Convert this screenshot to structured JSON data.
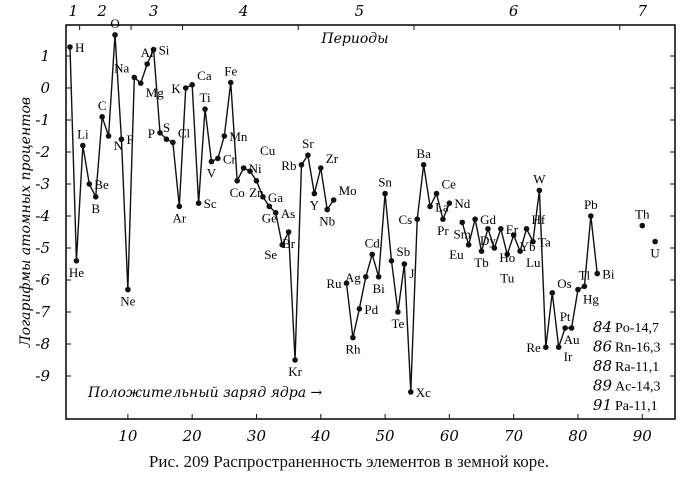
{
  "chart_data": {
    "type": "line",
    "title": "Рис. 209  Распространенность элементов в земной коре.",
    "xlabel": "Положительный заряд ядра →",
    "ylabel": "Логарифмы атомных процентов",
    "periods_label": "Периоды",
    "periods": [
      {
        "label": "1",
        "at": 1.5
      },
      {
        "label": "2",
        "at": 6
      },
      {
        "label": "3",
        "at": 14
      },
      {
        "label": "4",
        "at": 28
      },
      {
        "label": "5",
        "at": 46
      },
      {
        "label": "6",
        "at": 70
      },
      {
        "label": "7",
        "at": 90
      }
    ],
    "xlim": [
      0,
      93
    ],
    "ylim": [
      -10,
      2
    ],
    "xticks": [
      10,
      20,
      30,
      40,
      50,
      60,
      70,
      80,
      90
    ],
    "yticks": [
      1,
      0,
      -1,
      -2,
      -3,
      -4,
      -5,
      -6,
      -7,
      -8,
      -9
    ],
    "series": [
      {
        "name": "segment-1",
        "points": [
          {
            "z": 1,
            "el": "H",
            "v": 1.28
          },
          {
            "z": 2,
            "el": "He",
            "v": -5.4
          },
          {
            "z": 3,
            "el": "Li",
            "v": -1.8
          },
          {
            "z": 4,
            "el": "Be",
            "v": -3.0
          },
          {
            "z": 5,
            "el": "B",
            "v": -3.4
          },
          {
            "z": 6,
            "el": "C",
            "v": -0.9
          },
          {
            "z": 7,
            "el": "N",
            "v": -1.5
          },
          {
            "z": 8,
            "el": "O",
            "v": 1.66
          },
          {
            "z": 9,
            "el": "F",
            "v": -1.6
          },
          {
            "z": 10,
            "el": "Ne",
            "v": -6.3
          },
          {
            "z": 11,
            "el": "Na",
            "v": 0.33
          },
          {
            "z": 12,
            "el": "Mg",
            "v": 0.15
          },
          {
            "z": 13,
            "el": "Al",
            "v": 0.75
          },
          {
            "z": 14,
            "el": "Si",
            "v": 1.2
          },
          {
            "z": 15,
            "el": "P",
            "v": -1.4
          },
          {
            "z": 16,
            "el": "S",
            "v": -1.6
          },
          {
            "z": 17,
            "el": "Cl",
            "v": -1.7
          },
          {
            "z": 18,
            "el": "Ar",
            "v": -3.7
          },
          {
            "z": 19,
            "el": "K",
            "v": 0.0
          },
          {
            "z": 20,
            "el": "Ca",
            "v": 0.1
          },
          {
            "z": 21,
            "el": "Sc",
            "v": -3.6
          },
          {
            "z": 22,
            "el": "Ti",
            "v": -0.66
          },
          {
            "z": 23,
            "el": "V",
            "v": -2.3
          },
          {
            "z": 24,
            "el": "Cr",
            "v": -2.2
          },
          {
            "z": 25,
            "el": "Mn",
            "v": -1.5
          },
          {
            "z": 26,
            "el": "Fe",
            "v": 0.17
          },
          {
            "z": 27,
            "el": "Co",
            "v": -2.9
          },
          {
            "z": 28,
            "el": "Ni",
            "v": -2.5
          },
          {
            "z": 29,
            "el": "Cu",
            "v": -2.6
          },
          {
            "z": 30,
            "el": "Zn",
            "v": -2.9
          },
          {
            "z": 31,
            "el": "Ga",
            "v": -3.4
          },
          {
            "z": 32,
            "el": "Ge",
            "v": -3.7
          },
          {
            "z": 33,
            "el": "As",
            "v": -3.9
          },
          {
            "z": 34,
            "el": "Se",
            "v": -4.9
          },
          {
            "z": 35,
            "el": "Br",
            "v": -4.5
          },
          {
            "z": 36,
            "el": "Kr",
            "v": -8.5
          },
          {
            "z": 37,
            "el": "Rb",
            "v": -2.4
          },
          {
            "z": 38,
            "el": "Sr",
            "v": -2.1
          },
          {
            "z": 39,
            "el": "Y",
            "v": -3.3
          },
          {
            "z": 40,
            "el": "Zr",
            "v": -2.5
          },
          {
            "z": 41,
            "el": "Nb",
            "v": -3.8
          },
          {
            "z": 42,
            "el": "Mo",
            "v": -3.5
          }
        ]
      },
      {
        "name": "segment-2",
        "points": [
          {
            "z": 44,
            "el": "Ru",
            "v": -6.1
          },
          {
            "z": 45,
            "el": "Rh",
            "v": -7.8
          },
          {
            "z": 46,
            "el": "Pd",
            "v": -6.9
          },
          {
            "z": 47,
            "el": "Ag",
            "v": -5.9
          },
          {
            "z": 48,
            "el": "Cd",
            "v": -5.2
          },
          {
            "z": 49,
            "el": "Bi",
            "v": -5.9
          },
          {
            "z": 50,
            "el": "Sn",
            "v": -3.3
          },
          {
            "z": 51,
            "el": "Sb",
            "v": -5.4
          },
          {
            "z": 52,
            "el": "Te",
            "v": -7.0
          },
          {
            "z": 53,
            "el": "J",
            "v": -5.5
          },
          {
            "z": 54,
            "el": "Xc",
            "v": -9.5
          },
          {
            "z": 55,
            "el": "Cs",
            "v": -4.1
          },
          {
            "z": 56,
            "el": "Ba",
            "v": -2.4
          },
          {
            "z": 57,
            "el": "La",
            "v": -3.7
          },
          {
            "z": 58,
            "el": "Ce",
            "v": -3.3
          },
          {
            "z": 59,
            "el": "Pr",
            "v": -4.1
          },
          {
            "z": 60,
            "el": "Nd",
            "v": -3.6
          }
        ]
      },
      {
        "name": "segment-3",
        "points": [
          {
            "z": 62,
            "el": "Sm",
            "v": -4.2
          },
          {
            "z": 63,
            "el": "Eu",
            "v": -4.9
          },
          {
            "z": 64,
            "el": "Gd",
            "v": -4.1
          },
          {
            "z": 65,
            "el": "Tb",
            "v": -5.1
          },
          {
            "z": 66,
            "el": "Dy",
            "v": -4.4
          },
          {
            "z": 67,
            "el": "Ho",
            "v": -5.0
          },
          {
            "z": 68,
            "el": "Er",
            "v": -4.4
          },
          {
            "z": 69,
            "el": "Tu",
            "v": -5.2
          },
          {
            "z": 70,
            "el": "Yb",
            "v": -4.6
          },
          {
            "z": 71,
            "el": "Lu",
            "v": -5.1
          },
          {
            "z": 72,
            "el": "Hf",
            "v": -4.4
          },
          {
            "z": 73,
            "el": "Ta",
            "v": -4.8
          },
          {
            "z": 74,
            "el": "W",
            "v": -3.2
          },
          {
            "z": 75,
            "el": "Re",
            "v": -8.1
          },
          {
            "z": 76,
            "el": "Os",
            "v": -6.4
          },
          {
            "z": 77,
            "el": "Ir",
            "v": -8.1
          },
          {
            "z": 78,
            "el": "Pt",
            "v": -7.5
          },
          {
            "z": 79,
            "el": "Au",
            "v": -7.5
          },
          {
            "z": 80,
            "el": "Hg",
            "v": -6.3
          },
          {
            "z": 81,
            "el": "Tl",
            "v": -6.2
          },
          {
            "z": 82,
            "el": "Pb",
            "v": -4.0
          },
          {
            "z": 83,
            "el": "Bi",
            "v": -5.8
          }
        ]
      }
    ],
    "isolated_points": [
      {
        "z": 90,
        "el": "Th",
        "v": -4.3
      },
      {
        "z": 92,
        "el": "U",
        "v": -4.8
      }
    ],
    "offscale_table": [
      {
        "z": "84",
        "text": "Po-14,7"
      },
      {
        "z": "86",
        "text": "Rn-16,3"
      },
      {
        "z": "88",
        "text": "Ra-11,1"
      },
      {
        "z": "89",
        "text": "Ac-14,3"
      },
      {
        "z": "91",
        "text": "Pa-11,1"
      }
    ]
  }
}
